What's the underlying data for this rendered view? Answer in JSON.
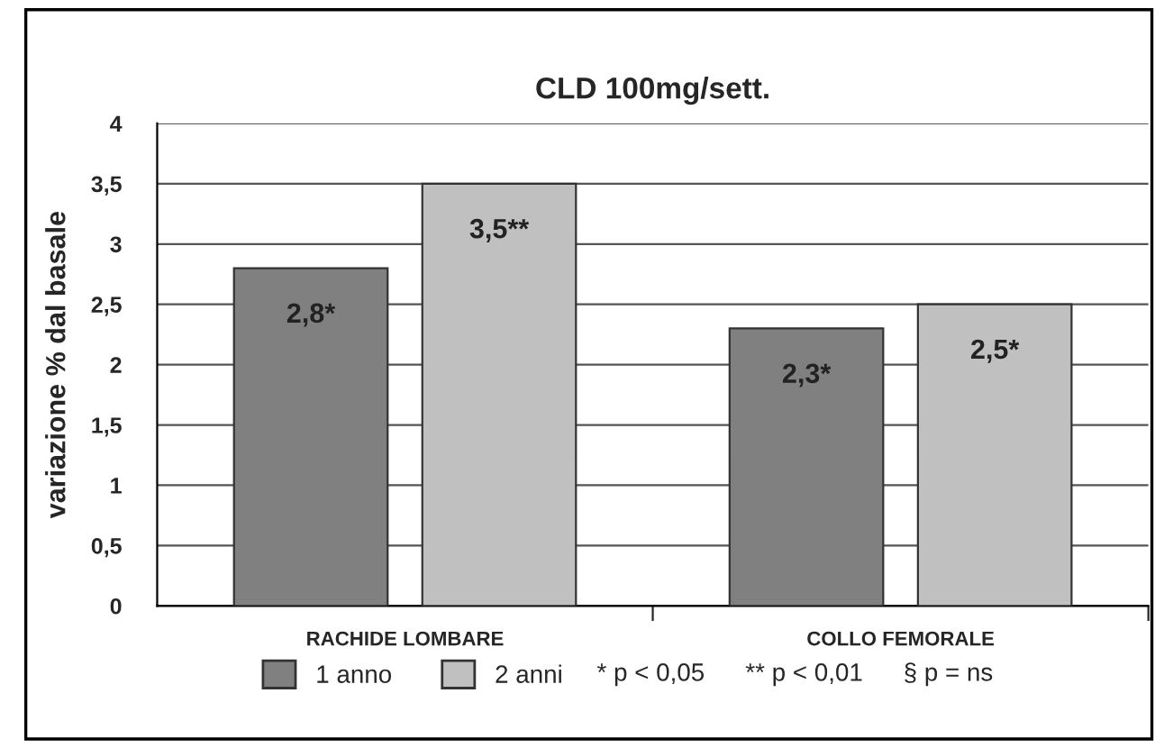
{
  "chart_data": {
    "type": "bar",
    "title": "CLD 100mg/sett.",
    "ylabel": "variazione % dal basale",
    "categories": [
      "RACHIDE LOMBARE",
      "COLLO FEMORALE"
    ],
    "series": [
      {
        "name": "1 anno",
        "color": "#808080",
        "values": [
          2.8,
          2.3
        ],
        "value_labels": [
          "2,8*",
          "2,3*"
        ]
      },
      {
        "name": "2 anni",
        "color": "#c0c0c0",
        "values": [
          3.5,
          2.5
        ],
        "value_labels": [
          "3,5**",
          "2,5*"
        ]
      }
    ],
    "ylim": [
      0,
      4
    ],
    "yticks": [
      0,
      {
        "value": 0.5,
        "label": "0,5"
      },
      1,
      {
        "value": 1.5,
        "label": "1,5"
      },
      2,
      {
        "value": 2.5,
        "label": "2,5"
      },
      3,
      {
        "value": 3.5,
        "label": "3,5"
      },
      4
    ],
    "grid": "y",
    "legend": "bottom",
    "annotations": [
      "* p < 0,05",
      "** p < 0,01",
      "§ p = ns"
    ]
  }
}
